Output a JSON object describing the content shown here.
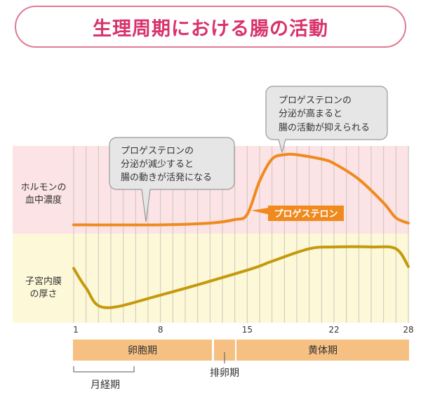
{
  "title": "生理周期における腸の活動",
  "row_labels": {
    "hormone": [
      "ホルモンの",
      "血中濃度"
    ],
    "endometrium": [
      "子宮内膜",
      "の厚さ"
    ]
  },
  "callouts": [
    {
      "lines": [
        "プロゲステロンの",
        "分泌が減少すると",
        "腸の動きが活発になる"
      ],
      "points_to_day": 7
    },
    {
      "lines": [
        "プロゲステロンの",
        "分泌が高まると",
        "腸の活動が抑えられる"
      ],
      "points_to_day": 18
    }
  ],
  "series_label": "プロゲステロン",
  "phases": {
    "follicular": "卵胞期",
    "ovulation": "排卵期",
    "luteal": "黄体期",
    "menstrual": "月経期"
  },
  "colors": {
    "title": "#d8336c",
    "progesterone": "#f08a1e",
    "endometrium": "#c49a0c",
    "pink_band": "#fbe3e6",
    "yellow_band": "#fdf8d8",
    "phase_bar": "#f7c083"
  },
  "chart_data": {
    "type": "line",
    "x_ticks": [
      1,
      8,
      15,
      22,
      28
    ],
    "xlim": [
      1,
      28
    ],
    "series": [
      {
        "name": "プロゲステロン",
        "x": [
          1,
          8,
          12,
          14,
          15,
          16,
          17,
          18,
          19,
          21,
          22,
          24,
          26,
          27,
          28
        ],
        "y": [
          10,
          10,
          12,
          16,
          22,
          60,
          85,
          90,
          90,
          85,
          80,
          62,
          35,
          18,
          12
        ]
      },
      {
        "name": "子宮内膜の厚さ",
        "x": [
          1,
          2,
          3.5,
          8,
          15,
          17,
          20,
          22,
          25,
          27,
          28
        ],
        "y": [
          61,
          39,
          17,
          31,
          59,
          69,
          83,
          85,
          85,
          83,
          63
        ]
      }
    ],
    "ylim": [
      0,
      100
    ]
  }
}
